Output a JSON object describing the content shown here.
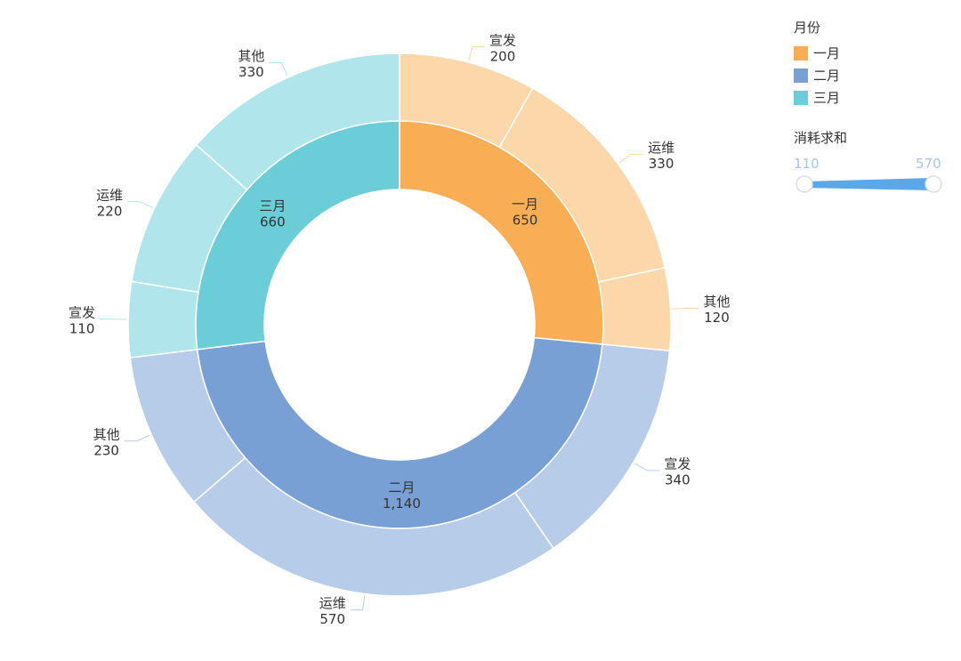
{
  "colors": {
    "inner": [
      "#f9ae55",
      "#78a0d4",
      "#6acdd8"
    ],
    "outer": [
      "#fbd7a9",
      "#b7cce9",
      "#b0e6eb"
    ],
    "slider": "#5aa8e8",
    "label": "#333333",
    "leader": [
      "#fbd7a9",
      "#b7cce9",
      "#b0e6eb"
    ]
  },
  "legend": {
    "title": "月份",
    "items": [
      {
        "label": "一月",
        "color": "#f9ae55"
      },
      {
        "label": "二月",
        "color": "#78a0d4"
      },
      {
        "label": "三月",
        "color": "#6acdd8"
      }
    ]
  },
  "slider": {
    "title": "消耗求和",
    "min_label": "110",
    "max_label": "570"
  },
  "chart_data": {
    "type": "sunburst",
    "inner": [
      {
        "name": "一月",
        "value": 650,
        "label": "650"
      },
      {
        "name": "二月",
        "value": 1140,
        "label": "1,140"
      },
      {
        "name": "三月",
        "value": 660,
        "label": "660"
      }
    ],
    "outer": [
      {
        "parent": "一月",
        "name": "宣发",
        "value": 200,
        "label": "200"
      },
      {
        "parent": "一月",
        "name": "运维",
        "value": 330,
        "label": "330"
      },
      {
        "parent": "一月",
        "name": "其他",
        "value": 120,
        "label": "120"
      },
      {
        "parent": "二月",
        "name": "宣发",
        "value": 340,
        "label": "340"
      },
      {
        "parent": "二月",
        "name": "运维",
        "value": 570,
        "label": "570"
      },
      {
        "parent": "二月",
        "name": "其他",
        "value": 230,
        "label": "230"
      },
      {
        "parent": "三月",
        "name": "宣发",
        "value": 110,
        "label": "110"
      },
      {
        "parent": "三月",
        "name": "运维",
        "value": 220,
        "label": "220"
      },
      {
        "parent": "三月",
        "name": "其他",
        "value": 330,
        "label": "330"
      }
    ]
  }
}
